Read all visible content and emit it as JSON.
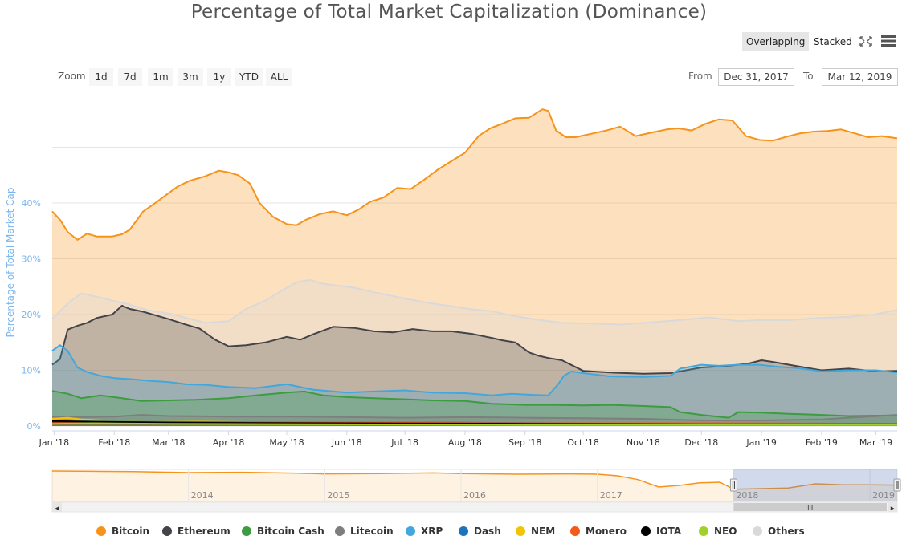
{
  "chart_data": {
    "type": "area",
    "title": "Percentage of Total Market Capitalization (Dominance)",
    "ylabel": "Percentage of Total Market Cap",
    "xlabel": "",
    "ylim": [
      0,
      55
    ],
    "yticks": [
      "0%",
      "10%",
      "20%",
      "30%",
      "40%"
    ],
    "ytick_values": [
      0,
      10,
      20,
      30,
      40
    ],
    "xlim": [
      "2017-12-31",
      "2019-03-12"
    ],
    "xticks": [
      {
        "date": "2018-01-01",
        "label": "Jan '18"
      },
      {
        "date": "2018-02-01",
        "label": "Feb '18"
      },
      {
        "date": "2018-03-01",
        "label": "Mar '18"
      },
      {
        "date": "2018-04-01",
        "label": "Apr '18"
      },
      {
        "date": "2018-05-01",
        "label": "May '18"
      },
      {
        "date": "2018-06-01",
        "label": "Jun '18"
      },
      {
        "date": "2018-07-01",
        "label": "Jul '18"
      },
      {
        "date": "2018-08-01",
        "label": "Aug '18"
      },
      {
        "date": "2018-09-01",
        "label": "Sep '18"
      },
      {
        "date": "2018-10-01",
        "label": "Oct '18"
      },
      {
        "date": "2018-11-01",
        "label": "Nov '18"
      },
      {
        "date": "2018-12-01",
        "label": "Dec '18"
      },
      {
        "date": "2019-01-01",
        "label": "Jan '19"
      },
      {
        "date": "2019-02-01",
        "label": "Feb '19"
      },
      {
        "date": "2019-03-01",
        "label": "Mar '19"
      }
    ],
    "grid": true,
    "legend_position": "bottom",
    "mode": "overlapping",
    "series": [
      {
        "name": "Bitcoin",
        "color": "#f7931a",
        "dates": [
          "2017-12-31",
          "2018-01-04",
          "2018-01-08",
          "2018-01-13",
          "2018-01-18",
          "2018-01-23",
          "2018-01-31",
          "2018-02-05",
          "2018-02-09",
          "2018-02-16",
          "2018-02-23",
          "2018-02-28",
          "2018-03-06",
          "2018-03-12",
          "2018-03-20",
          "2018-03-27",
          "2018-04-01",
          "2018-04-06",
          "2018-04-12",
          "2018-04-17",
          "2018-04-24",
          "2018-05-01",
          "2018-05-06",
          "2018-05-11",
          "2018-05-18",
          "2018-05-25",
          "2018-06-01",
          "2018-06-07",
          "2018-06-13",
          "2018-06-20",
          "2018-06-27",
          "2018-07-04",
          "2018-07-11",
          "2018-07-18",
          "2018-07-25",
          "2018-08-01",
          "2018-08-08",
          "2018-08-14",
          "2018-08-20",
          "2018-08-27",
          "2018-09-03",
          "2018-09-10",
          "2018-09-13",
          "2018-09-17",
          "2018-09-22",
          "2018-09-27",
          "2018-10-05",
          "2018-10-13",
          "2018-10-20",
          "2018-10-28",
          "2018-11-05",
          "2018-11-13",
          "2018-11-19",
          "2018-11-26",
          "2018-12-03",
          "2018-12-10",
          "2018-12-17",
          "2018-12-24",
          "2018-12-31",
          "2019-01-07",
          "2019-01-14",
          "2019-01-21",
          "2019-01-28",
          "2019-02-04",
          "2019-02-11",
          "2019-02-18",
          "2019-02-25",
          "2019-03-04",
          "2019-03-12"
        ],
        "values": [
          38.5,
          37.0,
          34.8,
          33.4,
          34.5,
          34.0,
          34.0,
          34.4,
          35.2,
          38.5,
          40.2,
          41.5,
          43.0,
          44.0,
          44.8,
          45.8,
          45.5,
          45.0,
          43.5,
          40.0,
          37.5,
          36.2,
          36.0,
          37.0,
          38.0,
          38.5,
          37.8,
          38.8,
          40.2,
          41.0,
          42.7,
          42.5,
          44.2,
          46.0,
          47.5,
          49.0,
          52.0,
          53.4,
          54.2,
          55.2,
          55.3,
          56.8,
          56.5,
          53.0,
          51.8,
          51.8,
          52.4,
          53.0,
          53.7,
          52.0,
          52.6,
          53.2,
          53.4,
          53.0,
          54.2,
          55.0,
          54.8,
          52.0,
          51.3,
          51.2,
          51.9,
          52.5,
          52.8,
          52.9,
          53.2,
          52.5,
          51.8,
          52.0,
          51.6
        ]
      },
      {
        "name": "Others",
        "color": "#d9d9d9",
        "dates": [
          "2017-12-31",
          "2018-01-08",
          "2018-01-15",
          "2018-01-23",
          "2018-01-31",
          "2018-02-09",
          "2018-02-18",
          "2018-03-01",
          "2018-03-09",
          "2018-03-20",
          "2018-04-01",
          "2018-04-10",
          "2018-04-20",
          "2018-04-28",
          "2018-05-06",
          "2018-05-13",
          "2018-05-20",
          "2018-05-27",
          "2018-06-05",
          "2018-06-15",
          "2018-06-25",
          "2018-07-05",
          "2018-07-15",
          "2018-07-25",
          "2018-08-05",
          "2018-08-15",
          "2018-08-25",
          "2018-09-05",
          "2018-09-20",
          "2018-10-05",
          "2018-10-20",
          "2018-11-05",
          "2018-11-20",
          "2018-12-05",
          "2018-12-20",
          "2019-01-01",
          "2019-01-15",
          "2019-01-31",
          "2019-02-15",
          "2019-02-28",
          "2019-03-12"
        ],
        "values": [
          19.2,
          22.0,
          23.8,
          23.2,
          22.5,
          21.8,
          20.8,
          20.2,
          19.5,
          18.5,
          18.8,
          21.0,
          22.5,
          24.2,
          25.8,
          26.2,
          25.5,
          25.2,
          24.8,
          24.0,
          23.3,
          22.6,
          22.0,
          21.5,
          20.9,
          20.6,
          19.8,
          19.2,
          18.5,
          18.4,
          18.2,
          18.6,
          19.0,
          19.5,
          18.8,
          19.0,
          19.0,
          19.4,
          19.6,
          20.0,
          20.8
        ]
      },
      {
        "name": "Ethereum",
        "color": "#434348",
        "dates": [
          "2017-12-31",
          "2018-01-04",
          "2018-01-08",
          "2018-01-13",
          "2018-01-18",
          "2018-01-23",
          "2018-01-31",
          "2018-02-05",
          "2018-02-09",
          "2018-02-16",
          "2018-02-23",
          "2018-03-01",
          "2018-03-09",
          "2018-03-17",
          "2018-03-25",
          "2018-04-01",
          "2018-04-10",
          "2018-04-20",
          "2018-05-01",
          "2018-05-08",
          "2018-05-15",
          "2018-05-25",
          "2018-06-05",
          "2018-06-15",
          "2018-06-25",
          "2018-07-05",
          "2018-07-15",
          "2018-07-25",
          "2018-08-05",
          "2018-08-15",
          "2018-08-20",
          "2018-08-27",
          "2018-09-03",
          "2018-09-08",
          "2018-09-13",
          "2018-09-20",
          "2018-10-01",
          "2018-10-15",
          "2018-11-01",
          "2018-11-15",
          "2018-12-01",
          "2018-12-15",
          "2018-12-25",
          "2019-01-01",
          "2019-01-07",
          "2019-01-20",
          "2019-02-01",
          "2019-02-15",
          "2019-03-01",
          "2019-03-12"
        ],
        "values": [
          11.0,
          12.0,
          17.3,
          18.0,
          18.5,
          19.4,
          20.0,
          21.6,
          21.0,
          20.5,
          19.8,
          19.2,
          18.3,
          17.5,
          15.5,
          14.3,
          14.5,
          15.0,
          16.0,
          15.5,
          16.5,
          17.8,
          17.6,
          17.0,
          16.8,
          17.4,
          17.0,
          17.0,
          16.5,
          15.8,
          15.4,
          15.0,
          13.2,
          12.6,
          12.2,
          11.8,
          9.9,
          9.6,
          9.4,
          9.5,
          10.5,
          10.8,
          11.2,
          11.8,
          11.5,
          10.7,
          10.0,
          10.3,
          9.8,
          9.9
        ]
      },
      {
        "name": "XRP",
        "color": "#41a7dc",
        "dates": [
          "2017-12-31",
          "2018-01-04",
          "2018-01-08",
          "2018-01-13",
          "2018-01-18",
          "2018-01-25",
          "2018-02-01",
          "2018-02-10",
          "2018-02-20",
          "2018-03-01",
          "2018-03-10",
          "2018-03-20",
          "2018-04-01",
          "2018-04-15",
          "2018-05-01",
          "2018-05-15",
          "2018-06-01",
          "2018-06-15",
          "2018-07-01",
          "2018-07-15",
          "2018-08-01",
          "2018-08-15",
          "2018-08-25",
          "2018-09-05",
          "2018-09-13",
          "2018-09-18",
          "2018-09-21",
          "2018-09-25",
          "2018-10-01",
          "2018-10-15",
          "2018-11-01",
          "2018-11-15",
          "2018-11-20",
          "2018-12-01",
          "2018-12-10",
          "2018-12-20",
          "2018-12-31",
          "2019-01-10",
          "2019-01-20",
          "2019-02-01",
          "2019-02-15",
          "2019-03-01",
          "2019-03-12"
        ],
        "values": [
          13.5,
          14.5,
          13.5,
          10.5,
          9.7,
          9.0,
          8.6,
          8.4,
          8.1,
          7.9,
          7.5,
          7.4,
          7.0,
          6.8,
          7.5,
          6.5,
          6.0,
          6.2,
          6.4,
          6.0,
          5.9,
          5.5,
          5.8,
          5.6,
          5.5,
          7.5,
          9.0,
          9.8,
          9.5,
          8.9,
          8.8,
          9.0,
          10.3,
          11.0,
          10.8,
          11.0,
          11.0,
          10.6,
          10.4,
          9.8,
          10.0,
          10.0,
          9.6
        ]
      },
      {
        "name": "Bitcoin Cash",
        "color": "#3d9b40",
        "dates": [
          "2017-12-31",
          "2018-01-08",
          "2018-01-15",
          "2018-01-25",
          "2018-02-05",
          "2018-02-15",
          "2018-03-01",
          "2018-03-15",
          "2018-04-01",
          "2018-04-15",
          "2018-05-01",
          "2018-05-10",
          "2018-05-20",
          "2018-06-01",
          "2018-06-15",
          "2018-07-01",
          "2018-07-15",
          "2018-08-01",
          "2018-08-15",
          "2018-09-01",
          "2018-09-15",
          "2018-10-01",
          "2018-10-15",
          "2018-11-01",
          "2018-11-15",
          "2018-11-20",
          "2018-12-01",
          "2018-12-15",
          "2018-12-20",
          "2019-01-01",
          "2019-01-15",
          "2019-02-01",
          "2019-02-15",
          "2019-03-12"
        ],
        "values": [
          6.3,
          5.8,
          5.0,
          5.5,
          5.0,
          4.5,
          4.6,
          4.7,
          5.0,
          5.5,
          6.0,
          6.2,
          5.5,
          5.2,
          5.0,
          4.8,
          4.6,
          4.5,
          4.0,
          3.8,
          3.8,
          3.7,
          3.8,
          3.6,
          3.4,
          2.5,
          2.0,
          1.5,
          2.5,
          2.4,
          2.2,
          2.0,
          1.8,
          1.9
        ]
      },
      {
        "name": "Litecoin",
        "color": "#7e7e7e",
        "dates": [
          "2017-12-31",
          "2018-01-15",
          "2018-02-01",
          "2018-02-15",
          "2018-03-01",
          "2018-04-01",
          "2018-05-01",
          "2018-06-01",
          "2018-07-01",
          "2018-08-01",
          "2018-09-01",
          "2018-10-01",
          "2018-11-01",
          "2018-12-01",
          "2019-01-01",
          "2019-02-01",
          "2019-02-15",
          "2019-03-12"
        ],
        "values": [
          1.7,
          1.6,
          1.7,
          2.0,
          1.8,
          1.7,
          1.7,
          1.6,
          1.5,
          1.6,
          1.5,
          1.4,
          1.3,
          1.0,
          1.0,
          1.2,
          1.5,
          2.0
        ]
      },
      {
        "name": "NEM",
        "color": "#f2c408",
        "dates": [
          "2017-12-31",
          "2018-01-08",
          "2018-01-15",
          "2018-02-01",
          "2018-02-20",
          "2018-03-15",
          "2018-04-15",
          "2018-05-15",
          "2018-06-15",
          "2018-08-01",
          "2018-09-15",
          "2018-11-01",
          "2018-12-15",
          "2019-02-01",
          "2019-03-12"
        ],
        "values": [
          1.3,
          1.5,
          1.2,
          0.9,
          0.8,
          0.8,
          0.7,
          0.6,
          0.5,
          0.5,
          0.4,
          0.4,
          0.3,
          0.3,
          0.3
        ]
      },
      {
        "name": "Dash",
        "color": "#1c75bc",
        "dates": [
          "2017-12-31",
          "2018-02-01",
          "2018-04-01",
          "2018-06-01",
          "2018-08-01",
          "2018-10-01",
          "2018-12-01",
          "2019-02-01",
          "2019-03-12"
        ],
        "values": [
          0.8,
          0.8,
          0.7,
          0.6,
          0.6,
          0.5,
          0.4,
          0.3,
          0.3
        ]
      },
      {
        "name": "Monero",
        "color": "#f45b1a",
        "dates": [
          "2017-12-31",
          "2018-03-01",
          "2018-06-01",
          "2018-09-01",
          "2018-12-01",
          "2019-03-12"
        ],
        "values": [
          0.6,
          0.6,
          0.6,
          0.5,
          0.5,
          0.4
        ]
      },
      {
        "name": "IOTA",
        "color": "#000000",
        "dates": [
          "2017-12-31",
          "2018-01-15",
          "2018-03-01",
          "2018-06-01",
          "2018-09-01",
          "2018-12-01",
          "2019-03-12"
        ],
        "values": [
          0.9,
          0.8,
          0.6,
          0.5,
          0.4,
          0.3,
          0.3
        ]
      },
      {
        "name": "NEO",
        "color": "#a0d02a",
        "dates": [
          "2017-12-31",
          "2018-01-20",
          "2018-03-01",
          "2018-06-01",
          "2018-09-01",
          "2018-12-01",
          "2019-03-12"
        ],
        "values": [
          0.4,
          0.5,
          0.4,
          0.3,
          0.2,
          0.2,
          0.2
        ]
      }
    ],
    "navigator": {
      "labels": [
        "2014",
        "2015",
        "2016",
        "2017",
        "2018",
        "2019"
      ],
      "label_years": [
        2014,
        2015,
        2016,
        2017,
        2018,
        2019
      ],
      "xlim_years": [
        2013.0,
        2019.2
      ],
      "selected_years": [
        2018.0,
        2019.2
      ],
      "btc_years": [
        2013.0,
        2013.3,
        2013.6,
        2014.0,
        2014.4,
        2014.8,
        2015.0,
        2015.4,
        2015.8,
        2016.0,
        2016.4,
        2016.8,
        2017.0,
        2017.15,
        2017.3,
        2017.45,
        2017.6,
        2017.75,
        2017.9,
        2018.0,
        2018.2,
        2018.4,
        2018.6,
        2018.8,
        2019.0,
        2019.2
      ],
      "btc_values": [
        95,
        94,
        93,
        90,
        91,
        88,
        86,
        87,
        89,
        87,
        85,
        86,
        85,
        80,
        68,
        45,
        50,
        58,
        60,
        38,
        40,
        42,
        55,
        52,
        52,
        51
      ]
    }
  },
  "title": "Percentage of Total Market Capitalization (Dominance)",
  "toolbar": {
    "overlapping": "Overlapping",
    "stacked": "Stacked",
    "fullscreen_icon": "fullscreen-icon",
    "menu_icon": "hamburger-menu-icon"
  },
  "zoom": {
    "label": "Zoom",
    "buttons": [
      "1d",
      "7d",
      "1m",
      "3m",
      "1y",
      "YTD",
      "ALL"
    ]
  },
  "range": {
    "from_label": "From",
    "from_value": "Dec 31, 2017",
    "to_label": "To",
    "to_value": "Mar 12, 2019"
  },
  "scrollbar": {
    "left_arrow": "◂",
    "right_arrow": "▸",
    "grip": "III"
  },
  "legend_items": [
    "Bitcoin",
    "Ethereum",
    "Bitcoin Cash",
    "Litecoin",
    "XRP",
    "Dash",
    "NEM",
    "Monero",
    "IOTA",
    "NEO",
    "Others"
  ],
  "legend_colors": [
    "#f7931a",
    "#434348",
    "#3d9b40",
    "#7e7e7e",
    "#41a7dc",
    "#1c75bc",
    "#f2c408",
    "#f45b1a",
    "#000000",
    "#a0d02a",
    "#d9d9d9"
  ]
}
